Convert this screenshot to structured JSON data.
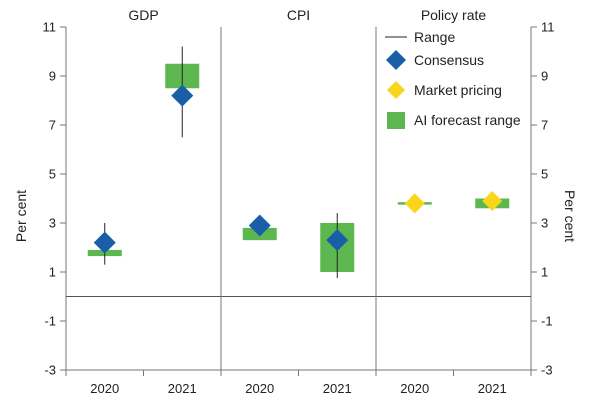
{
  "chart_data": {
    "type": "range",
    "ylabel_left": "Per cent",
    "ylabel_right": "Per cent",
    "ylim": [
      -3,
      11
    ],
    "yticks": [
      -3,
      -1,
      1,
      3,
      5,
      7,
      9,
      11
    ],
    "legend": {
      "position": "top-right",
      "entries": [
        {
          "key": "range",
          "label": "Range"
        },
        {
          "key": "consensus",
          "label": "Consensus"
        },
        {
          "key": "market",
          "label": "Market pricing"
        },
        {
          "key": "ai",
          "label": "AI forecast range"
        }
      ]
    },
    "colors": {
      "consensus": "#1a5ea8",
      "market": "#f7d61c",
      "ai": "#5cb84e",
      "range": "#222222",
      "axis": "#777777"
    },
    "panels": [
      {
        "title": "GDP",
        "categories": [
          "2020",
          "2021"
        ],
        "points": [
          {
            "year": "2020",
            "range": [
              1.3,
              3.0
            ],
            "consensus": 2.2,
            "ai_range": [
              1.65,
              1.9
            ]
          },
          {
            "year": "2021",
            "range": [
              6.5,
              10.2
            ],
            "consensus": 8.2,
            "ai_range": [
              8.5,
              9.5
            ]
          }
        ]
      },
      {
        "title": "CPI",
        "categories": [
          "2020",
          "2021"
        ],
        "points": [
          {
            "year": "2020",
            "range": null,
            "consensus": 2.9,
            "ai_range": [
              2.3,
              2.8
            ]
          },
          {
            "year": "2021",
            "range": [
              0.75,
              3.4
            ],
            "consensus": 2.3,
            "ai_range": [
              1.0,
              3.0
            ]
          }
        ]
      },
      {
        "title": "Policy rate",
        "categories": [
          "2020",
          "2021"
        ],
        "points": [
          {
            "year": "2020",
            "range": [
              3.65,
              3.9
            ],
            "market": 3.8,
            "ai_range": [
              3.75,
              3.85
            ]
          },
          {
            "year": "2021",
            "range": [
              3.7,
              4.1
            ],
            "market": 3.9,
            "ai_range": [
              3.6,
              4.0
            ]
          }
        ]
      }
    ]
  }
}
